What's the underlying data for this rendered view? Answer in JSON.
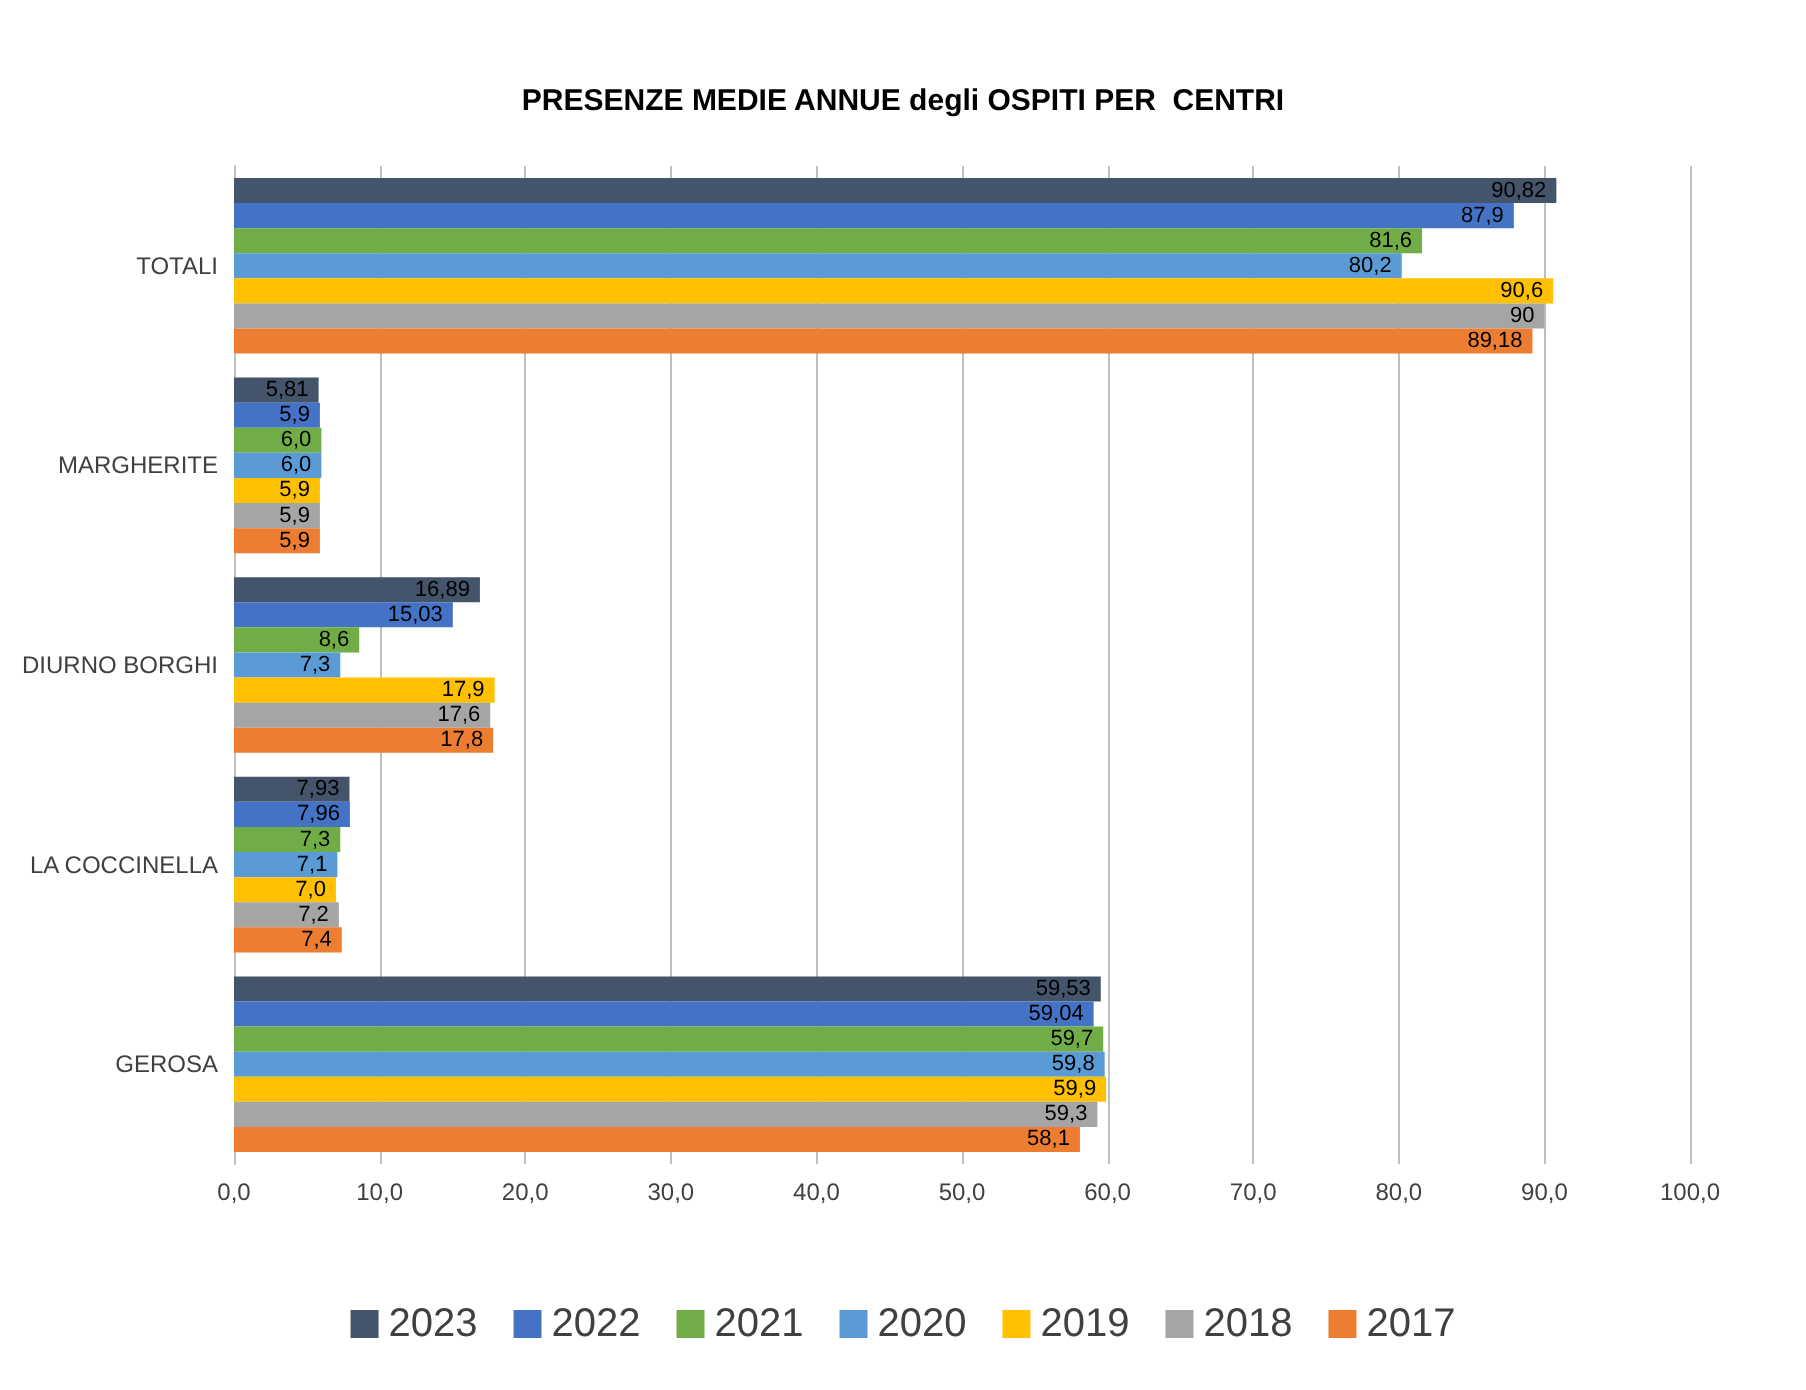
{
  "chart_data": {
    "type": "bar",
    "orientation": "horizontal",
    "title": "PRESENZE MEDIE ANNUE degli OSPITI PER  CENTRI",
    "categories": [
      "TOTALI",
      "MARGHERITE",
      "DIURNO BORGHI",
      "LA COCCINELLA",
      "GEROSA"
    ],
    "series": [
      {
        "name": "2023",
        "color": "#44546a",
        "values": [
          90.82,
          5.81,
          16.89,
          7.93,
          59.53
        ],
        "value_labels": [
          "90,82",
          "5,81",
          "16,89",
          "7,93",
          "59,53"
        ]
      },
      {
        "name": "2022",
        "color": "#4472c4",
        "values": [
          87.9,
          5.9,
          15.03,
          7.96,
          59.04
        ],
        "value_labels": [
          "87,9",
          "5,9",
          "15,03",
          "7,96",
          "59,04"
        ]
      },
      {
        "name": "2021",
        "color": "#70ad47",
        "values": [
          81.6,
          6.0,
          8.6,
          7.3,
          59.7
        ],
        "value_labels": [
          "81,6",
          "6,0",
          "8,6",
          "7,3",
          "59,7"
        ]
      },
      {
        "name": "2020",
        "color": "#5b9bd5",
        "values": [
          80.2,
          6.0,
          7.3,
          7.1,
          59.8
        ],
        "value_labels": [
          "80,2",
          "6,0",
          "7,3",
          "7,1",
          "59,8"
        ]
      },
      {
        "name": "2019",
        "color": "#ffc000",
        "values": [
          90.6,
          5.9,
          17.9,
          7.0,
          59.9
        ],
        "value_labels": [
          "90,6",
          "5,9",
          "17,9",
          "7,0",
          "59,9"
        ]
      },
      {
        "name": "2018",
        "color": "#a5a5a5",
        "values": [
          90,
          5.9,
          17.6,
          7.2,
          59.3
        ],
        "value_labels": [
          "90",
          "5,9",
          "17,6",
          "7,2",
          "59,3"
        ]
      },
      {
        "name": "2017",
        "color": "#ed7d31",
        "values": [
          89.18,
          5.9,
          17.8,
          7.4,
          58.1
        ],
        "value_labels": [
          "89,18",
          "5,9",
          "17,8",
          "7,4",
          "58,1"
        ]
      }
    ],
    "xlim": [
      0,
      100
    ],
    "xticks": [
      {
        "value": 0,
        "label": "0,0"
      },
      {
        "value": 10,
        "label": "10,0"
      },
      {
        "value": 20,
        "label": "20,0"
      },
      {
        "value": 30,
        "label": "30,0"
      },
      {
        "value": 40,
        "label": "40,0"
      },
      {
        "value": 50,
        "label": "50,0"
      },
      {
        "value": 60,
        "label": "60,0"
      },
      {
        "value": 70,
        "label": "70,0"
      },
      {
        "value": 80,
        "label": "80,0"
      },
      {
        "value": 90,
        "label": "90,0"
      },
      {
        "value": 100,
        "label": "100,0"
      }
    ],
    "grid": "x",
    "legend": "bottom"
  }
}
